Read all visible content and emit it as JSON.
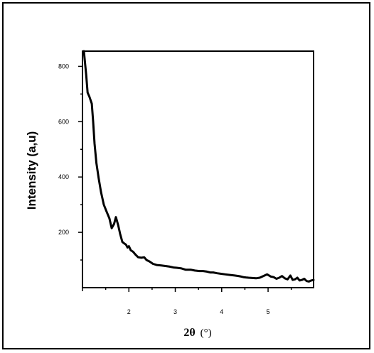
{
  "chart_data": {
    "type": "line",
    "title": "",
    "xlabel_main": "2θ",
    "xlabel_unit": "(°)",
    "ylabel": "Intensity (a,u)",
    "xlim": [
      1.0,
      5.98
    ],
    "ylim": [
      0,
      855
    ],
    "x_ticks": [
      2,
      3,
      4,
      5
    ],
    "x_tick_labels": [
      "2",
      "3",
      "4",
      "5"
    ],
    "y_ticks": [
      200,
      400,
      600,
      800
    ],
    "y_tick_labels": [
      "200",
      "400",
      "600",
      "800"
    ],
    "grid": false,
    "line_color": "#000000",
    "series": [
      {
        "x": [
          1.03,
          1.05,
          1.08,
          1.11,
          1.15,
          1.2,
          1.23,
          1.26,
          1.3,
          1.35,
          1.4,
          1.46,
          1.52,
          1.58,
          1.63,
          1.68,
          1.72,
          1.77,
          1.81,
          1.86,
          1.9,
          1.94,
          1.97,
          2.0,
          2.04,
          2.09,
          2.14,
          2.2,
          2.27,
          2.33,
          2.38,
          2.44,
          2.52,
          2.6,
          2.7,
          2.8,
          2.88,
          2.96,
          3.03,
          3.12,
          3.22,
          3.33,
          3.42,
          3.52,
          3.6,
          3.68,
          3.75,
          3.82,
          3.9,
          3.99,
          4.08,
          4.18,
          4.28,
          4.36,
          4.42,
          4.47,
          4.52,
          4.58,
          4.66,
          4.74,
          4.82,
          4.9,
          4.98,
          5.06,
          5.12,
          5.18,
          5.24,
          5.3,
          5.36,
          5.42,
          5.48,
          5.53,
          5.58,
          5.63,
          5.68,
          5.73,
          5.78,
          5.83,
          5.88,
          5.93,
          5.98
        ],
        "y": [
          855,
          820,
          770,
          705,
          690,
          665,
          600,
          520,
          450,
          395,
          345,
          300,
          275,
          250,
          215,
          230,
          255,
          225,
          195,
          165,
          160,
          155,
          145,
          150,
          135,
          130,
          120,
          110,
          108,
          110,
          100,
          95,
          86,
          82,
          80,
          78,
          76,
          73,
          72,
          70,
          65,
          65,
          62,
          60,
          60,
          58,
          55,
          55,
          52,
          50,
          48,
          46,
          44,
          42,
          40,
          38,
          37,
          36,
          35,
          34,
          36,
          42,
          48,
          40,
          38,
          32,
          36,
          42,
          34,
          30,
          44,
          28,
          30,
          36,
          26,
          28,
          32,
          24,
          22,
          26,
          28
        ]
      }
    ]
  }
}
